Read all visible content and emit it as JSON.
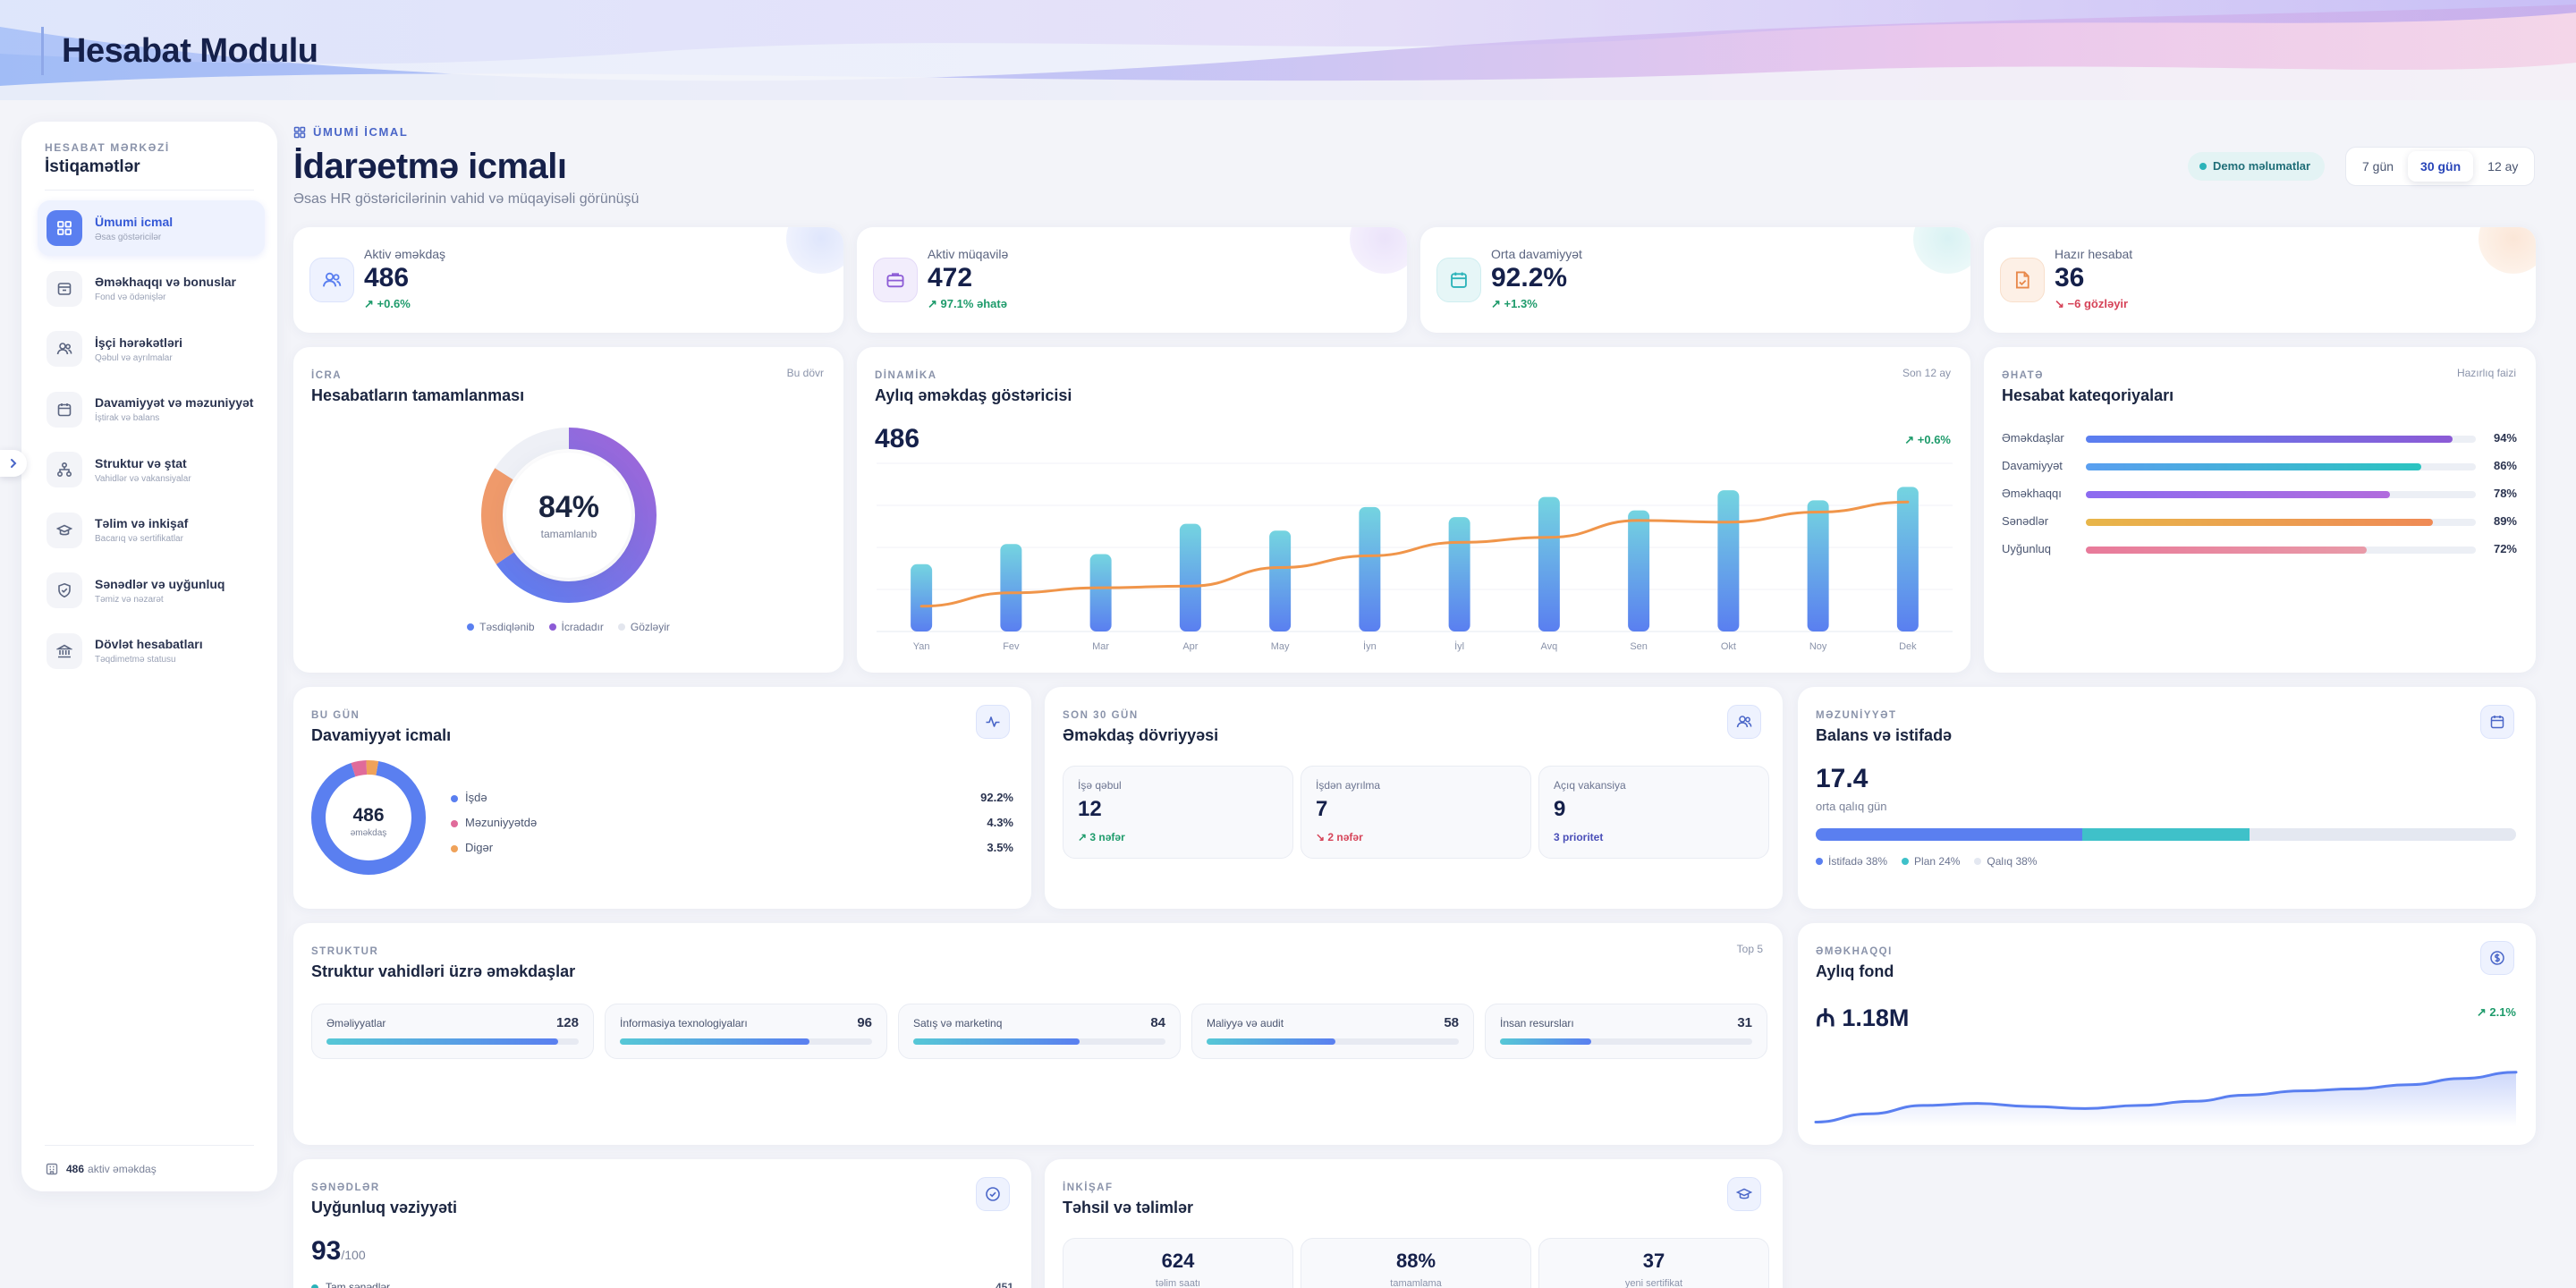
{
  "app": {
    "title": "Hesabat Modulu"
  },
  "sidebar": {
    "kicker": "HESABAT MƏRKƏZİ",
    "title": "İstiqamətlər",
    "items": [
      {
        "label": "Ümumi icmal",
        "sub": "Əsas göstəricilər",
        "icon": "grid-icon",
        "active": true
      },
      {
        "label": "Əməkhaqqı və bonuslar",
        "sub": "Fond və ödənişlər",
        "icon": "wallet-icon"
      },
      {
        "label": "İşçi hərəkətləri",
        "sub": "Qəbul və ayrılmalar",
        "icon": "users-icon"
      },
      {
        "label": "Davamiyyət və məzuniyyət",
        "sub": "İştirak və balans",
        "icon": "calendar-icon"
      },
      {
        "label": "Struktur və ştat",
        "sub": "Vahidlər və vakansiyalar",
        "icon": "hierarchy-icon"
      },
      {
        "label": "Təlim və inkişaf",
        "sub": "Bacarıq və sertifikatlar",
        "icon": "graduation-cap-icon"
      },
      {
        "label": "Sənədlər və uyğunluq",
        "sub": "Təmiz və nəzarət",
        "icon": "shield-check-icon"
      },
      {
        "label": "Dövlət hesabatları",
        "sub": "Təqdimetmə statusu",
        "icon": "bank-icon"
      }
    ],
    "footer_count": "486",
    "footer_text": "aktiv əməkdaş"
  },
  "header": {
    "kicker": "ÜMUMİ İCMAL",
    "title": "İdarəetmə icmalı",
    "subtitle": "Əsas HR göstəricilərinin vahid və müqayisəli görünüşü",
    "demo_badge": "Demo məlumatlar",
    "ranges": [
      "7 gün",
      "30 gün",
      "12 ay"
    ],
    "selected_range": "30 gün"
  },
  "kpis": [
    {
      "label": "Aktiv əməkdaş",
      "value": "486",
      "delta": "+0.6%",
      "trend": "up",
      "icon": "users-icon",
      "color": "#5a7ff0"
    },
    {
      "label": "Aktiv müqavilə",
      "value": "472",
      "delta": "97.1% əhatə",
      "trend": "up",
      "icon": "briefcase-icon",
      "color": "#8c5bd6"
    },
    {
      "label": "Orta davamiyyət",
      "value": "92.2%",
      "delta": "+1.3%",
      "trend": "up",
      "icon": "calendar-icon",
      "color": "#2bb3b9"
    },
    {
      "label": "Hazır hesabat",
      "value": "36",
      "delta": "−6 gözləyir",
      "trend": "down",
      "icon": "document-icon",
      "color": "#e8884a"
    }
  ],
  "completion": {
    "kicker": "İCRA",
    "title": "Hesabatların tamamlanması",
    "period": "Bu dövr",
    "value": "84%",
    "value_label": "tamamlanıb",
    "percent": 84,
    "legend": [
      "Təsdiqlənib",
      "İcradadır",
      "Gözləyir"
    ]
  },
  "dynamics": {
    "kicker": "DİNAMİKA",
    "title": "Aylıq əməkdaş göstəricisi",
    "period": "Son 12 ay",
    "value": "486",
    "delta": "+0.6%"
  },
  "categories": {
    "kicker": "ƏHATƏ",
    "title": "Hesabat kateqoriyaları",
    "note": "Hazırlıq faizi",
    "items": [
      {
        "name": "Əməkdaşlar",
        "pct": "94%",
        "value": 94
      },
      {
        "name": "Davamiyyət",
        "pct": "86%",
        "value": 86
      },
      {
        "name": "Əməkhaqqı",
        "pct": "78%",
        "value": 78
      },
      {
        "name": "Sənədlər",
        "pct": "89%",
        "value": 89
      },
      {
        "name": "Uyğunluq",
        "pct": "72%",
        "value": 72
      }
    ]
  },
  "attendance": {
    "kicker": "BU GÜN",
    "title": "Davamiyyət icmalı",
    "center_value": "486",
    "center_label": "əməkdaş",
    "rows": [
      {
        "name": "İşdə",
        "pct": "92.2%",
        "value": 92.2
      },
      {
        "name": "Məzuniyyətdə",
        "pct": "4.3%",
        "value": 4.3
      },
      {
        "name": "Digər",
        "pct": "3.5%",
        "value": 3.5
      }
    ]
  },
  "cycle": {
    "kicker": "SON 30 GÜN",
    "title": "Əməkdaş dövriyyəsi",
    "items": [
      {
        "title": "İşə qəbul",
        "value": "12",
        "sub": "3 nəfər",
        "trend": "up"
      },
      {
        "title": "İşdən ayrılma",
        "value": "7",
        "sub": "2 nəfər",
        "trend": "down"
      },
      {
        "title": "Açıq vakansiya",
        "value": "9",
        "sub": "3 prioritet",
        "trend": "neutral"
      }
    ]
  },
  "leave": {
    "kicker": "MƏZUNİYYƏT",
    "title": "Balans və istifadə",
    "value": "17.4",
    "value_label": "orta qalıq gün",
    "segments": [
      {
        "label": "İstifadə 38%",
        "value": 38
      },
      {
        "label": "Plan 24%",
        "value": 24
      },
      {
        "label": "Qalıq 38%",
        "value": 38
      }
    ]
  },
  "structure": {
    "kicker": "STRUKTUR",
    "title": "Struktur vahidləri üzrə əməkdaşlar",
    "note": "Top 5",
    "items": [
      {
        "name": "Əməliyyatlar",
        "value": "128",
        "count": 128
      },
      {
        "name": "İnformasiya texnologiyaları",
        "value": "96",
        "count": 96
      },
      {
        "name": "Satış və marketinq",
        "value": "84",
        "count": 84
      },
      {
        "name": "Maliyyə və audit",
        "value": "58",
        "count": 58
      },
      {
        "name": "İnsan resursları",
        "value": "31",
        "count": 31
      }
    ]
  },
  "payroll": {
    "kicker": "ƏMƏKHAQQI",
    "title": "Aylıq fond",
    "value": "₼ 1.18M",
    "delta": "2.1%"
  },
  "compliance": {
    "kicker": "SƏNƏDLƏR",
    "title": "Uyğunluq vəziyyəti",
    "score": "93",
    "max": "/100",
    "row_label": "Tam sənədlər",
    "row_value": "451"
  },
  "training": {
    "kicker": "İNKİŞAF",
    "title": "Təhsil və təlimlər",
    "items": [
      {
        "value": "624",
        "label": "təlim saatı"
      },
      {
        "value": "88%",
        "label": "tamamlama"
      },
      {
        "value": "37",
        "label": "yeni sertifikat"
      }
    ]
  },
  "chart_data": [
    {
      "type": "bar",
      "title": "Aylıq əməkdaş göstəricisi",
      "categories": [
        "Yan",
        "Fev",
        "Mar",
        "Apr",
        "May",
        "İyn",
        "İyl",
        "Avq",
        "Sen",
        "Okt",
        "Noy",
        "Dek"
      ],
      "series": [
        {
          "type": "bar",
          "values": [
            40,
            52,
            46,
            64,
            60,
            74,
            68,
            80,
            72,
            84,
            78,
            86
          ]
        },
        {
          "type": "line",
          "values": [
            15,
            23,
            26,
            27,
            38,
            45,
            53,
            56,
            66,
            65,
            71,
            77
          ]
        }
      ],
      "ylim": [
        0,
        100
      ],
      "grid": true
    },
    {
      "type": "line",
      "title": "Aylıq fond",
      "values": [
        22,
        30,
        38,
        40,
        37,
        35,
        38,
        42,
        48,
        52,
        54,
        58,
        64,
        70
      ],
      "ylim": [
        0,
        100
      ]
    }
  ]
}
